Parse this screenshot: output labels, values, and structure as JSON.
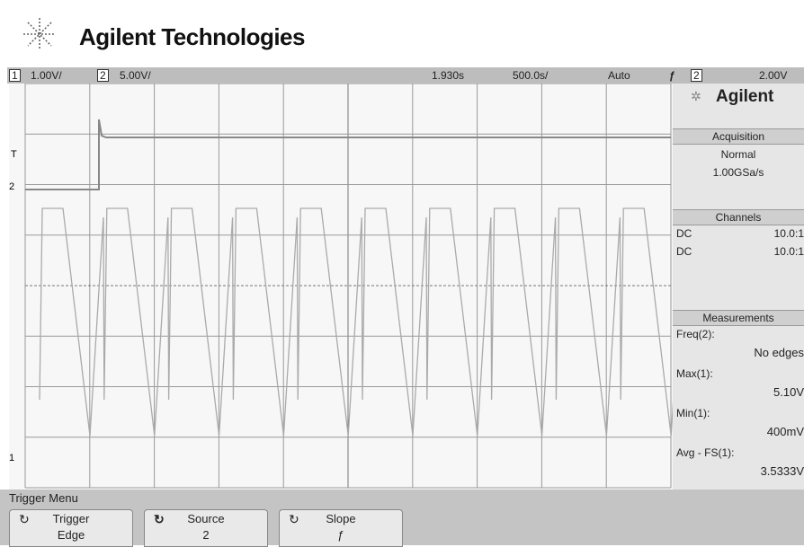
{
  "header": {
    "brand": "Agilent Technologies"
  },
  "status_bar": {
    "ch1_label": "1",
    "ch1_scale": "1.00V/",
    "ch2_label": "2",
    "ch2_scale": "5.00V/",
    "time_delay": "1.930s",
    "time_scale": "500.0s/",
    "trigger_mode": "Auto",
    "trigger_slope": "ƒ",
    "trigger_source": "2",
    "trigger_level": "2.00V"
  },
  "graticule_markers": {
    "trigger": "T",
    "ch2": "2",
    "ch1": "1"
  },
  "side_panel": {
    "logo": "Agilent",
    "acquisition": {
      "title": "Acquisition",
      "mode": "Normal",
      "rate": "1.00GSa/s"
    },
    "channels": {
      "title": "Channels",
      "rows": [
        [
          "DC",
          "10.0:1"
        ],
        [
          "DC",
          "10.0:1"
        ]
      ]
    },
    "measurements": {
      "title": "Measurements",
      "items": [
        {
          "label": "Freq(2):",
          "value": "No edges"
        },
        {
          "label": "Max(1):",
          "value": "5.10V"
        },
        {
          "label": "Min(1):",
          "value": "400mV"
        },
        {
          "label": "Avg - FS(1):",
          "value": "3.5333V"
        }
      ]
    }
  },
  "softkeys": {
    "menu_title": "Trigger Menu",
    "buttons": [
      {
        "label": "Trigger",
        "value": "Edge"
      },
      {
        "label": "Source",
        "value": "2"
      },
      {
        "label": "Slope",
        "value": "ƒ"
      }
    ]
  }
}
